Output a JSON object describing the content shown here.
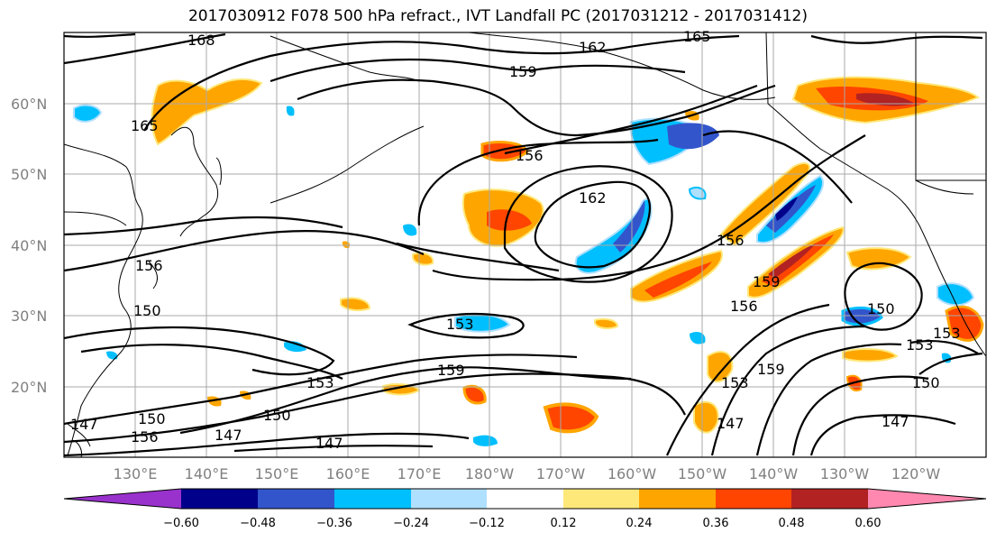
{
  "title": "2017030912 F078 500 hPa refract., IVT Landfall PC (2017031212 - 2017031412)",
  "lat_ticks": [
    "60°N",
    "50°N",
    "40°N",
    "30°N",
    "20°N"
  ],
  "lon_ticks": [
    "130°E",
    "140°E",
    "150°E",
    "160°E",
    "170°E",
    "180°W",
    "170°W",
    "160°W",
    "150°W",
    "140°W",
    "130°W",
    "120°W"
  ],
  "colorbar": {
    "tick_labels": [
      "−0.60",
      "−0.48",
      "−0.36",
      "−0.24",
      "−0.12",
      "0.12",
      "0.24",
      "0.36",
      "0.48",
      "0.60"
    ],
    "colors": [
      "#9932cc",
      "#00008b",
      "#3355cc",
      "#00bfff",
      "#b0e0ff",
      "#ffffff",
      "#ffe87a",
      "#ffa500",
      "#ff4500",
      "#b22222",
      "#ff88b0"
    ]
  },
  "contour_labels": [
    "168",
    "162",
    "165",
    "159",
    "165",
    "156",
    "162",
    "156",
    "156",
    "159",
    "150",
    "153",
    "159",
    "153",
    "153",
    "150",
    "147",
    "156",
    "150",
    "147",
    "147",
    "150",
    "147",
    "153",
    "156",
    "159",
    "153",
    "150",
    "147"
  ]
}
